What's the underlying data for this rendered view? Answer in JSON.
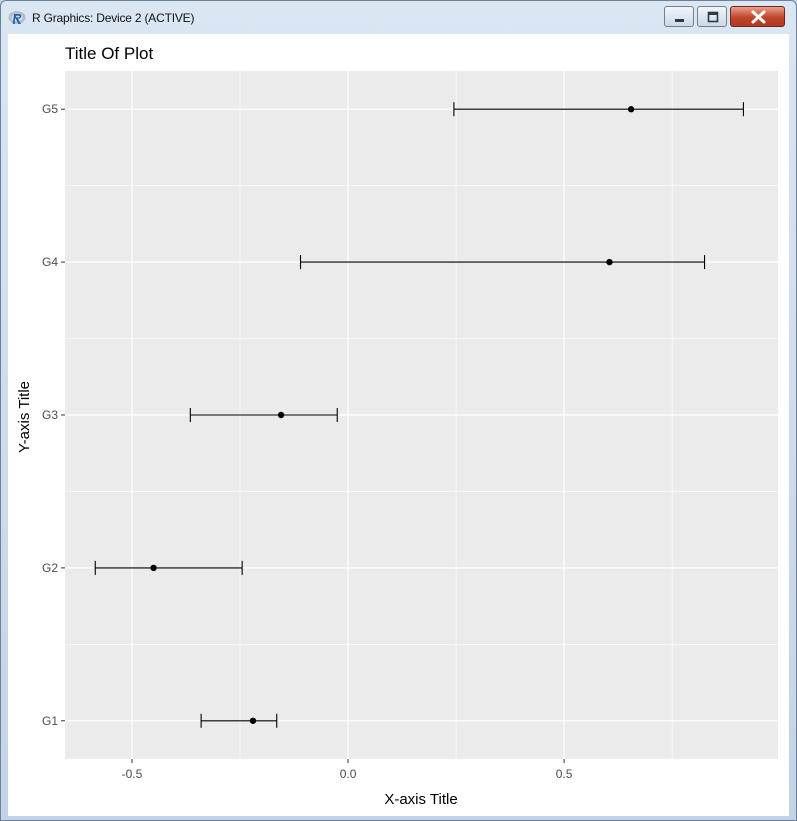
{
  "window": {
    "title": "R Graphics: Device 2 (ACTIVE)",
    "icon": "r-logo-icon",
    "controls": [
      "minimize-icon",
      "maximize-icon",
      "close-icon"
    ]
  },
  "colors": {
    "panel_bg": "#ebebeb",
    "grid": "#ffffff",
    "errorbar": "#000000",
    "point": "#000000",
    "close_button": "#c2452c"
  },
  "chart_data": {
    "type": "errorbar",
    "title": "Title Of Plot",
    "xlabel": "X-axis Title",
    "ylabel": "Y-axis Title",
    "categories": [
      "G1",
      "G2",
      "G3",
      "G4",
      "G5"
    ],
    "points": [
      {
        "group": "G1",
        "estimate": -0.22,
        "lower": -0.34,
        "upper": -0.165
      },
      {
        "group": "G2",
        "estimate": -0.45,
        "lower": -0.585,
        "upper": -0.245
      },
      {
        "group": "G3",
        "estimate": -0.155,
        "lower": -0.365,
        "upper": -0.025
      },
      {
        "group": "G4",
        "estimate": 0.605,
        "lower": -0.11,
        "upper": 0.825
      },
      {
        "group": "G5",
        "estimate": 0.655,
        "lower": 0.245,
        "upper": 0.915
      }
    ],
    "xticks": [
      -0.5,
      0.0,
      0.5
    ],
    "xtick_labels": [
      "-0.5",
      "0.0",
      "0.5"
    ],
    "xlim": [
      -0.655,
      0.995
    ],
    "grid": true
  }
}
